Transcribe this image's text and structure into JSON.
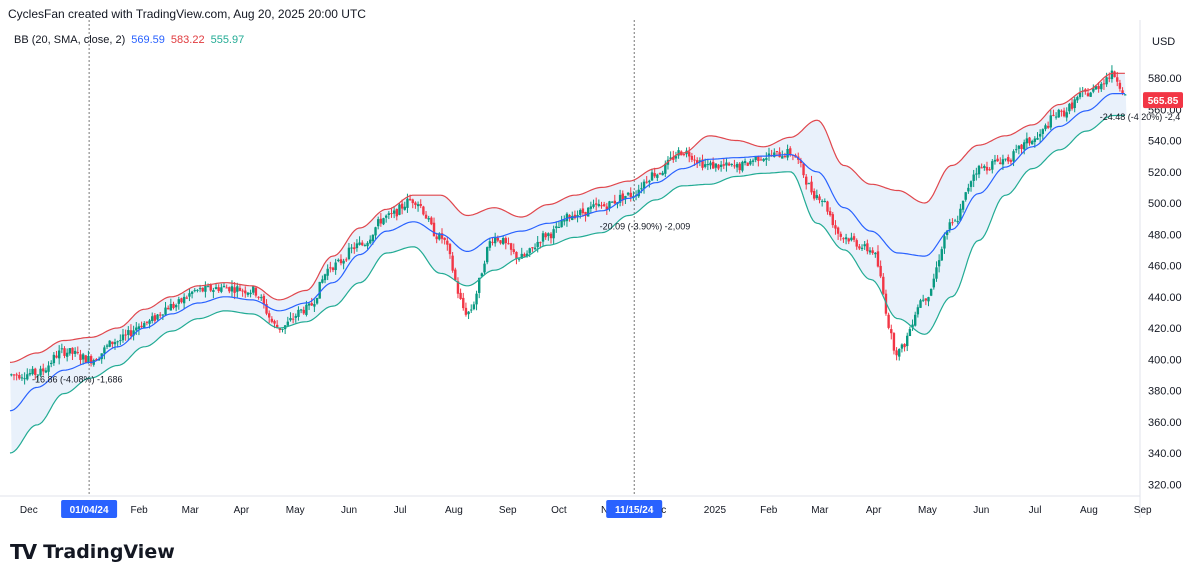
{
  "header": {
    "attribution": "CyclesFan created with TradingView.com, Aug 20, 2025 20:00 UTC"
  },
  "indicator": {
    "label": "BB (20, SMA, close, 2)",
    "basis": "569.59",
    "upper": "583.22",
    "lower": "555.97"
  },
  "price_axis": {
    "currency": "USD",
    "last_price_badge": "565.85",
    "badge_color": "#f23645"
  },
  "logo": {
    "text": "TradingView"
  },
  "colors": {
    "upper_band": "#e0474d",
    "lower_band": "#22ab94",
    "basis": "#2962ff",
    "band_fill": "#e9f1fb",
    "candle_up": "#089981",
    "candle_down": "#f23645"
  },
  "chart_data": {
    "type": "line",
    "title": "",
    "y_range": [
      320,
      590
    ],
    "y_ticks": [
      "580.00",
      "560.00",
      "540.00",
      "520.00",
      "500.00",
      "480.00",
      "460.00",
      "440.00",
      "420.00",
      "400.00",
      "380.00",
      "360.00",
      "340.00",
      "320.00"
    ],
    "y_tick_values": [
      580,
      560,
      540,
      520,
      500,
      480,
      460,
      440,
      420,
      400,
      380,
      360,
      340,
      320
    ],
    "x_range": [
      0,
      21
    ],
    "x_ticks": [
      {
        "label": "Dec",
        "t": 0.35,
        "highlight": false
      },
      {
        "label": "01/04/24",
        "t": 1.47,
        "highlight": true
      },
      {
        "label": "Feb",
        "t": 2.4,
        "highlight": false
      },
      {
        "label": "Mar",
        "t": 3.35,
        "highlight": false
      },
      {
        "label": "Apr",
        "t": 4.3,
        "highlight": false
      },
      {
        "label": "May",
        "t": 5.3,
        "highlight": false
      },
      {
        "label": "Jun",
        "t": 6.3,
        "highlight": false
      },
      {
        "label": "Jul",
        "t": 7.25,
        "highlight": false
      },
      {
        "label": "Aug",
        "t": 8.25,
        "highlight": false
      },
      {
        "label": "Sep",
        "t": 9.25,
        "highlight": false
      },
      {
        "label": "Oct",
        "t": 10.2,
        "highlight": false
      },
      {
        "label": "N",
        "t": 11.05,
        "highlight": false
      },
      {
        "label": "11/15/24",
        "t": 11.6,
        "highlight": true
      },
      {
        "label": "c",
        "t": 12.15,
        "highlight": false
      },
      {
        "label": "2025",
        "t": 13.1,
        "highlight": false
      },
      {
        "label": "Feb",
        "t": 14.1,
        "highlight": false
      },
      {
        "label": "Mar",
        "t": 15.05,
        "highlight": false
      },
      {
        "label": "Apr",
        "t": 16.05,
        "highlight": false
      },
      {
        "label": "May",
        "t": 17.05,
        "highlight": false
      },
      {
        "label": "Jun",
        "t": 18.05,
        "highlight": false
      },
      {
        "label": "Jul",
        "t": 19.05,
        "highlight": false
      },
      {
        "label": "Aug",
        "t": 20.05,
        "highlight": false
      },
      {
        "label": "Sep",
        "t": 21.05,
        "highlight": false
      }
    ],
    "vertical_markers": [
      1.47,
      11.6
    ],
    "series": [
      {
        "name": "upper",
        "points": [
          [
            0,
            398
          ],
          [
            0.5,
            404
          ],
          [
            1,
            412
          ],
          [
            1.5,
            414
          ],
          [
            2,
            420
          ],
          [
            2.5,
            432
          ],
          [
            3,
            440
          ],
          [
            3.5,
            447
          ],
          [
            4,
            449
          ],
          [
            4.5,
            447
          ],
          [
            5,
            438
          ],
          [
            5.5,
            444
          ],
          [
            6,
            466
          ],
          [
            6.5,
            484
          ],
          [
            7,
            496
          ],
          [
            7.5,
            505
          ],
          [
            8,
            505
          ],
          [
            8.5,
            492
          ],
          [
            9,
            497
          ],
          [
            9.5,
            491
          ],
          [
            10,
            499
          ],
          [
            10.5,
            505
          ],
          [
            11,
            510
          ],
          [
            11.5,
            514
          ],
          [
            12,
            522
          ],
          [
            12.5,
            532
          ],
          [
            13,
            543
          ],
          [
            13.5,
            540
          ],
          [
            14,
            536
          ],
          [
            14.5,
            542
          ],
          [
            15,
            553
          ],
          [
            15.5,
            524
          ],
          [
            16,
            512
          ],
          [
            16.5,
            508
          ],
          [
            17,
            500
          ],
          [
            17.5,
            524
          ],
          [
            18,
            537
          ],
          [
            18.5,
            543
          ],
          [
            19,
            550
          ],
          [
            19.5,
            563
          ],
          [
            20,
            572
          ],
          [
            20.5,
            583
          ]
        ]
      },
      {
        "name": "basis",
        "points": [
          [
            0,
            367
          ],
          [
            0.5,
            382
          ],
          [
            1,
            393
          ],
          [
            1.5,
            398
          ],
          [
            2,
            408
          ],
          [
            2.5,
            420
          ],
          [
            3,
            429
          ],
          [
            3.5,
            436
          ],
          [
            4,
            440
          ],
          [
            4.5,
            438
          ],
          [
            5,
            431
          ],
          [
            5.5,
            436
          ],
          [
            6,
            449
          ],
          [
            6.5,
            467
          ],
          [
            7,
            482
          ],
          [
            7.5,
            488
          ],
          [
            8,
            480
          ],
          [
            8.5,
            469
          ],
          [
            9,
            478
          ],
          [
            9.5,
            482
          ],
          [
            10,
            487
          ],
          [
            10.5,
            491
          ],
          [
            11,
            495
          ],
          [
            11.5,
            503
          ],
          [
            12,
            513
          ],
          [
            12.5,
            522
          ],
          [
            13,
            528
          ],
          [
            13.5,
            529
          ],
          [
            14,
            530
          ],
          [
            14.5,
            531
          ],
          [
            15,
            520
          ],
          [
            15.5,
            497
          ],
          [
            16,
            482
          ],
          [
            16.5,
            468
          ],
          [
            17,
            466
          ],
          [
            17.5,
            483
          ],
          [
            18,
            506
          ],
          [
            18.5,
            523
          ],
          [
            19,
            536
          ],
          [
            19.5,
            549
          ],
          [
            20,
            559
          ],
          [
            20.5,
            570
          ]
        ]
      },
      {
        "name": "lower",
        "points": [
          [
            0,
            340
          ],
          [
            0.5,
            358
          ],
          [
            1,
            378
          ],
          [
            1.5,
            388
          ],
          [
            2,
            396
          ],
          [
            2.5,
            408
          ],
          [
            3,
            418
          ],
          [
            3.5,
            426
          ],
          [
            4,
            431
          ],
          [
            4.5,
            429
          ],
          [
            5,
            420
          ],
          [
            5.5,
            424
          ],
          [
            6,
            434
          ],
          [
            6.5,
            449
          ],
          [
            7,
            468
          ],
          [
            7.5,
            472
          ],
          [
            8,
            455
          ],
          [
            8.5,
            447
          ],
          [
            9,
            457
          ],
          [
            9.5,
            465
          ],
          [
            10,
            473
          ],
          [
            10.5,
            478
          ],
          [
            11,
            481
          ],
          [
            11.5,
            492
          ],
          [
            12,
            502
          ],
          [
            12.5,
            511
          ],
          [
            13,
            512
          ],
          [
            13.5,
            517
          ],
          [
            14,
            519
          ],
          [
            14.5,
            520
          ],
          [
            15,
            487
          ],
          [
            15.5,
            470
          ],
          [
            16,
            451
          ],
          [
            16.5,
            426
          ],
          [
            17,
            416
          ],
          [
            17.5,
            440
          ],
          [
            18,
            476
          ],
          [
            18.5,
            505
          ],
          [
            19,
            522
          ],
          [
            19.5,
            534
          ],
          [
            20,
            546
          ],
          [
            20.5,
            556
          ]
        ]
      },
      {
        "name": "price",
        "points": [
          [
            0,
            390
          ],
          [
            0.5,
            391
          ],
          [
            1,
            405
          ],
          [
            1.5,
            400
          ],
          [
            2,
            412
          ],
          [
            2.5,
            423
          ],
          [
            3,
            434
          ],
          [
            3.5,
            444
          ],
          [
            4,
            446
          ],
          [
            4.5,
            444
          ],
          [
            5,
            420
          ],
          [
            5.5,
            432
          ],
          [
            6,
            460
          ],
          [
            6.5,
            473
          ],
          [
            7,
            491
          ],
          [
            7.5,
            502
          ],
          [
            8,
            478
          ],
          [
            8.5,
            430
          ],
          [
            9,
            478
          ],
          [
            9.5,
            465
          ],
          [
            10,
            480
          ],
          [
            10.5,
            493
          ],
          [
            11,
            498
          ],
          [
            11.5,
            505
          ],
          [
            12,
            519
          ],
          [
            12.5,
            533
          ],
          [
            13,
            524
          ],
          [
            13.5,
            523
          ],
          [
            14,
            530
          ],
          [
            14.5,
            532
          ],
          [
            15,
            505
          ],
          [
            15.5,
            478
          ],
          [
            16,
            470
          ],
          [
            16.5,
            405
          ],
          [
            17,
            440
          ],
          [
            17.5,
            486
          ],
          [
            18,
            522
          ],
          [
            18.5,
            528
          ],
          [
            19,
            540
          ],
          [
            19.5,
            557
          ],
          [
            20,
            570
          ],
          [
            20.5,
            582
          ],
          [
            20.8,
            565.85
          ]
        ]
      }
    ],
    "annotations": [
      {
        "text": "-16.86 (-4.08%) -1,686",
        "t": 1.25,
        "y": 385
      },
      {
        "text": "-20.09 (-3.90%) -2,009",
        "t": 11.8,
        "y": 483
      },
      {
        "text": "-24.48 (-4.20%) -2,4",
        "t": 21.0,
        "y": 553
      }
    ]
  }
}
